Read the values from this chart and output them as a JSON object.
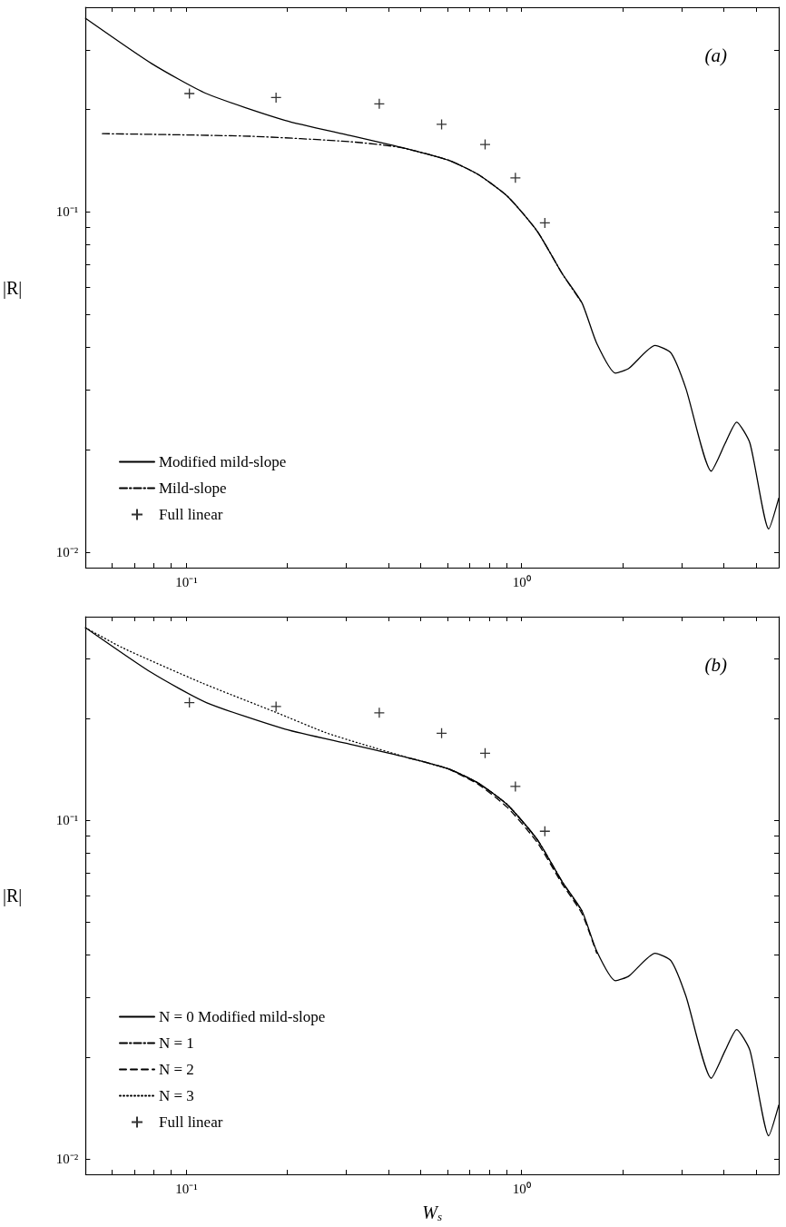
{
  "chart_data": [
    {
      "type": "line",
      "title": "(a)",
      "ylabel": "|R|",
      "log": "xy",
      "legend": "bottom left",
      "xlim": [
        0.05,
        5.85
      ],
      "ylim": [
        0.009,
        0.4
      ],
      "xticks": [
        {
          "value": 0.06,
          "label": null
        },
        {
          "value": 0.07,
          "label": null
        },
        {
          "value": 0.08,
          "label": null
        },
        {
          "value": 0.09,
          "label": null
        },
        {
          "value": 0.1,
          "label": "10⁻¹"
        },
        {
          "value": 0.2,
          "label": null
        },
        {
          "value": 0.3,
          "label": null
        },
        {
          "value": 0.4,
          "label": null
        },
        {
          "value": 0.5,
          "label": null
        },
        {
          "value": 0.6,
          "label": null
        },
        {
          "value": 0.7,
          "label": null
        },
        {
          "value": 0.8,
          "label": null
        },
        {
          "value": 0.9,
          "label": null
        },
        {
          "value": 1,
          "label": "10⁰"
        },
        {
          "value": 2,
          "label": null
        },
        {
          "value": 3,
          "label": null
        },
        {
          "value": 4,
          "label": null
        },
        {
          "value": 5,
          "label": null
        }
      ],
      "yticks": [
        {
          "value": 0.01,
          "label": "10⁻²"
        },
        {
          "value": 0.02,
          "label": null
        },
        {
          "value": 0.03,
          "label": null
        },
        {
          "value": 0.04,
          "label": null
        },
        {
          "value": 0.05,
          "label": null
        },
        {
          "value": 0.06,
          "label": null
        },
        {
          "value": 0.07,
          "label": null
        },
        {
          "value": 0.08,
          "label": null
        },
        {
          "value": 0.09,
          "label": null
        },
        {
          "value": 0.1,
          "label": "10⁻¹"
        },
        {
          "value": 0.2,
          "label": null
        },
        {
          "value": 0.3,
          "label": null
        }
      ],
      "series": [
        {
          "name": "Modified mild-slope",
          "color": "#000000",
          "line_style": "solid",
          "marker": "none",
          "x": [
            0.05,
            0.0788,
            0.1146,
            0.197,
            0.307,
            0.461,
            0.605,
            0.741,
            0.909,
            1.114,
            1.32,
            1.514,
            1.675,
            1.905,
            2.09,
            2.5,
            2.79,
            3.09,
            3.68,
            4.05,
            4.38,
            4.8,
            5.46,
            5.85
          ],
          "values": [
            0.371,
            0.273,
            0.223,
            0.186,
            0.168,
            0.153,
            0.142,
            0.129,
            0.111,
            0.0877,
            0.066,
            0.054,
            0.0411,
            0.0336,
            0.0347,
            0.0405,
            0.0385,
            0.0303,
            0.0173,
            0.0209,
            0.0241,
            0.0209,
            0.0117,
            0.0144
          ]
        },
        {
          "name": "Mild-slope",
          "color": "#000000",
          "line_style": "dashdot",
          "marker": "none",
          "x": [
            0.0561,
            0.156,
            0.307,
            0.431,
            0.605,
            0.741,
            0.909,
            1.114,
            1.32,
            1.514
          ],
          "values": [
            0.17,
            0.167,
            0.161,
            0.155,
            0.142,
            0.129,
            0.111,
            0.0877,
            0.066,
            0.054
          ]
        },
        {
          "name": "Full linear",
          "type": "scatter",
          "color": "#000000",
          "marker": "cross",
          "x": [
            0.102,
            0.185,
            0.376,
            0.577,
            0.778,
            0.958,
            1.173
          ],
          "values": [
            0.223,
            0.217,
            0.208,
            0.181,
            0.158,
            0.126,
            0.0929
          ]
        }
      ]
    },
    {
      "type": "line",
      "title": "(b)",
      "xlabel": "W$_{s}$",
      "ylabel": "|R|",
      "log": "xy",
      "legend": "bottom left",
      "xlim": [
        0.05,
        5.85
      ],
      "ylim": [
        0.009,
        0.4
      ],
      "xticks": [
        {
          "value": 0.06,
          "label": null
        },
        {
          "value": 0.07,
          "label": null
        },
        {
          "value": 0.08,
          "label": null
        },
        {
          "value": 0.09,
          "label": null
        },
        {
          "value": 0.1,
          "label": "10⁻¹"
        },
        {
          "value": 0.2,
          "label": null
        },
        {
          "value": 0.3,
          "label": null
        },
        {
          "value": 0.4,
          "label": null
        },
        {
          "value": 0.5,
          "label": null
        },
        {
          "value": 0.6,
          "label": null
        },
        {
          "value": 0.7,
          "label": null
        },
        {
          "value": 0.8,
          "label": null
        },
        {
          "value": 0.9,
          "label": null
        },
        {
          "value": 1,
          "label": "10⁰"
        },
        {
          "value": 2,
          "label": null
        },
        {
          "value": 3,
          "label": null
        },
        {
          "value": 4,
          "label": null
        },
        {
          "value": 5,
          "label": null
        }
      ],
      "yticks": [
        {
          "value": 0.01,
          "label": "10⁻²"
        },
        {
          "value": 0.02,
          "label": null
        },
        {
          "value": 0.03,
          "label": null
        },
        {
          "value": 0.04,
          "label": null
        },
        {
          "value": 0.05,
          "label": null
        },
        {
          "value": 0.06,
          "label": null
        },
        {
          "value": 0.07,
          "label": null
        },
        {
          "value": 0.08,
          "label": null
        },
        {
          "value": 0.09,
          "label": null
        },
        {
          "value": 0.1,
          "label": "10⁻¹"
        },
        {
          "value": 0.2,
          "label": null
        },
        {
          "value": 0.3,
          "label": null
        }
      ],
      "series": [
        {
          "name": "N = 0 Modified mild-slope",
          "color": "#000000",
          "line_style": "solid",
          "marker": "none",
          "x": [
            0.05,
            0.0788,
            0.1146,
            0.197,
            0.307,
            0.461,
            0.605,
            0.741,
            0.909,
            1.114,
            1.32,
            1.514,
            1.675,
            1.905,
            2.09,
            2.5,
            2.79,
            3.09,
            3.68,
            4.05,
            4.38,
            4.8,
            5.46,
            5.85
          ],
          "values": [
            0.371,
            0.273,
            0.223,
            0.186,
            0.168,
            0.153,
            0.142,
            0.129,
            0.111,
            0.0877,
            0.066,
            0.054,
            0.0411,
            0.0336,
            0.0347,
            0.0405,
            0.0385,
            0.0303,
            0.0173,
            0.0209,
            0.0241,
            0.0209,
            0.0117,
            0.0144
          ]
        },
        {
          "name": "N = 1",
          "color": "#000000",
          "line_style": "dashdot",
          "marker": "none",
          "x": [
            0.461,
            0.605,
            0.741,
            0.909,
            1.114,
            1.32,
            1.514
          ],
          "values": [
            0.153,
            0.142,
            0.129,
            0.111,
            0.0877,
            0.066,
            0.054
          ]
        },
        {
          "name": "N = 2",
          "color": "#000000",
          "line_style": "dashed",
          "marker": "none",
          "x": [
            0.605,
            0.741,
            0.909,
            1.114,
            1.32,
            1.514,
            1.675
          ],
          "values": [
            0.142,
            0.128,
            0.109,
            0.086,
            0.065,
            0.053,
            0.0405
          ]
        },
        {
          "name": "N = 3",
          "color": "#000000",
          "line_style": "dotted",
          "marker": "none",
          "x": [
            0.05,
            0.0643,
            0.111,
            0.184,
            0.259,
            0.328,
            0.461,
            0.605,
            0.741,
            0.909,
            1.114
          ],
          "values": [
            0.371,
            0.324,
            0.255,
            0.209,
            0.182,
            0.169,
            0.153,
            0.142,
            0.129,
            0.111,
            0.0877
          ]
        },
        {
          "name": "Full linear",
          "type": "scatter",
          "color": "#000000",
          "marker": "cross",
          "x": [
            0.102,
            0.185,
            0.376,
            0.577,
            0.778,
            0.958,
            1.173
          ],
          "values": [
            0.223,
            0.217,
            0.208,
            0.181,
            0.158,
            0.126,
            0.0929
          ]
        }
      ]
    }
  ]
}
